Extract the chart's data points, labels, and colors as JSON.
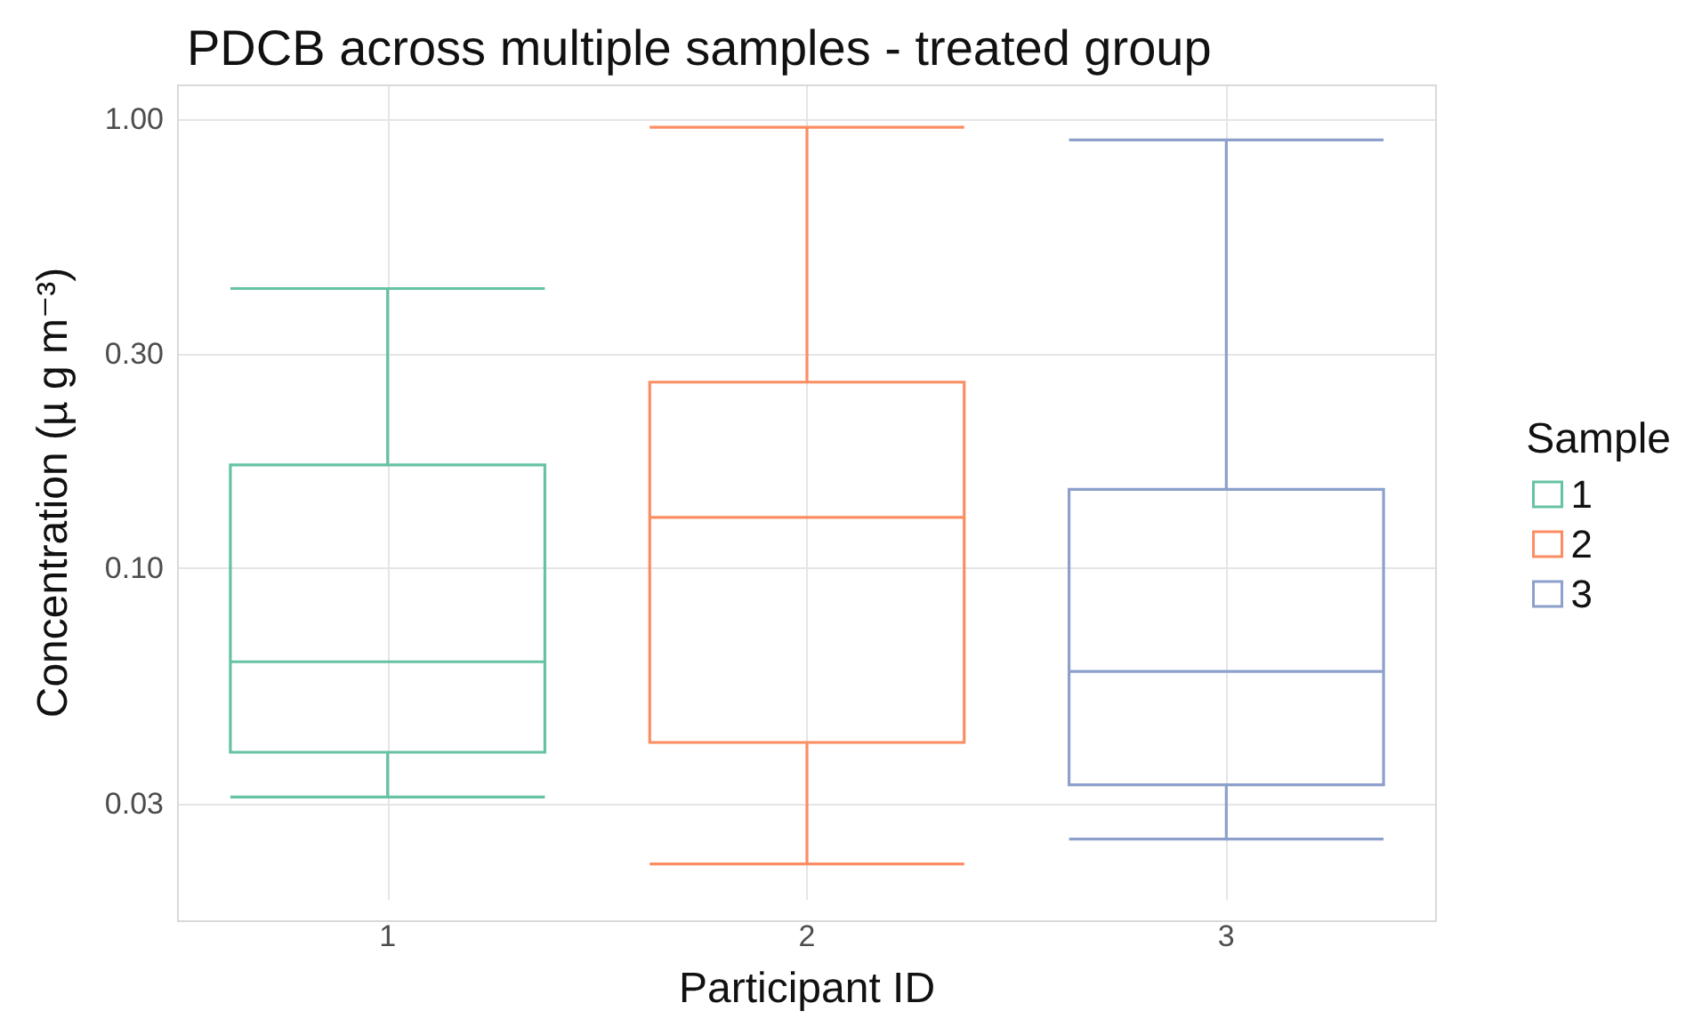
{
  "chart_data": {
    "type": "box",
    "title": "PDCB across multiple samples - treated group",
    "xlabel": "Participant ID",
    "ylabel": "Concentration (µ g m⁻³)",
    "legend_title": "Sample",
    "categories": [
      "1",
      "2",
      "3"
    ],
    "series": [
      {
        "name": "1",
        "color": "#66c2a5",
        "boxes": [
          {
            "low": 0.031,
            "q1": 0.039,
            "median": 0.062,
            "q3": 0.17,
            "high": 0.42
          },
          null,
          null
        ]
      },
      {
        "name": "2",
        "color": "#fc8d62",
        "boxes": [
          null,
          {
            "low": 0.022,
            "q1": 0.041,
            "median": 0.13,
            "q3": 0.26,
            "high": 0.96
          },
          null
        ]
      },
      {
        "name": "3",
        "color": "#8da0cb",
        "boxes": [
          null,
          null,
          {
            "low": 0.025,
            "q1": 0.033,
            "median": 0.059,
            "q3": 0.15,
            "high": 0.9
          }
        ]
      }
    ],
    "log": "y",
    "ylim": [
      0.0183,
      1.19
    ],
    "yticks": [
      {
        "value": 1,
        "label": "1.00"
      },
      {
        "value": 0.3,
        "label": "0.30"
      },
      {
        "value": 0.1,
        "label": "0.10"
      },
      0.03
    ],
    "grid": true,
    "legend": "right"
  }
}
